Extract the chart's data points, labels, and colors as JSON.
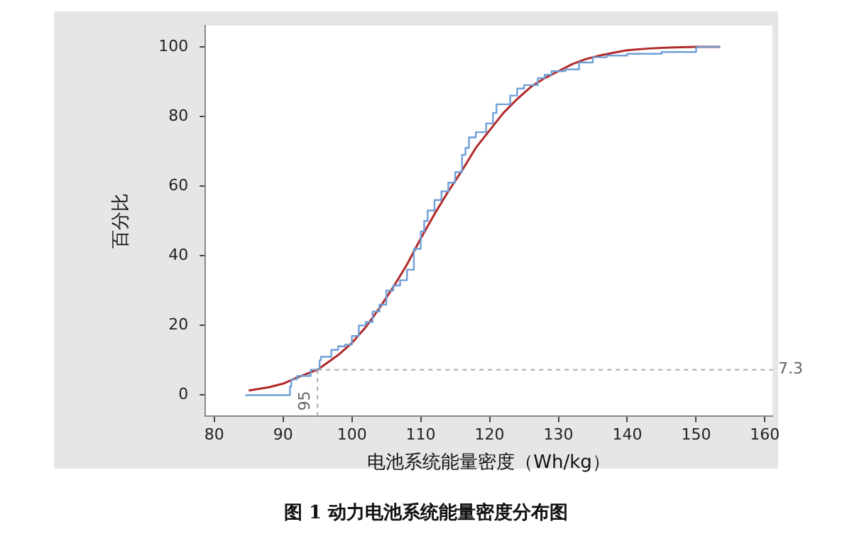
{
  "chart_data": {
    "type": "line",
    "xlabel": "电池系统能量密度（Wh/kg）",
    "ylabel": "百分比",
    "xlim": [
      78.7,
      161.1
    ],
    "ylim": [
      -6.1,
      106.1
    ],
    "xticks": [
      80,
      90,
      100,
      110,
      120,
      130,
      140,
      150,
      160
    ],
    "yticks": [
      0,
      20,
      40,
      60,
      80,
      100
    ],
    "series": [
      {
        "type": "step",
        "color": "#6f9fd8",
        "x": [
          84.5,
          91,
          91.2,
          92,
          94,
          95.3,
          95.5,
          97,
          98,
          99,
          100,
          101,
          102,
          103,
          104,
          105,
          106,
          107,
          108,
          109,
          110,
          110.5,
          111,
          112,
          113,
          114,
          115,
          116,
          116.5,
          117,
          118,
          119.5,
          120.5,
          121,
          123,
          124,
          125,
          127,
          128,
          129,
          131,
          133,
          135,
          137,
          140,
          145,
          150,
          150.3,
          153.5
        ],
        "values": [
          0,
          0,
          2.5,
          4.5,
          5.5,
          7.3,
          10,
          11,
          13,
          14,
          14.5,
          17,
          20,
          21,
          24,
          26,
          30,
          31.5,
          33,
          36,
          42,
          47,
          50,
          53,
          56,
          58.5,
          61,
          64,
          69,
          71,
          74,
          75.5,
          78,
          81,
          83.5,
          86,
          88,
          89,
          91,
          92,
          93,
          93.5,
          95.5,
          97,
          97.5,
          98,
          98.5,
          99.8,
          100
        ]
      },
      {
        "type": "line",
        "color": "#b22a2a",
        "x": [
          85,
          88,
          90,
          92,
          95,
          98,
          100,
          102,
          104,
          106,
          108,
          110,
          112,
          114,
          116,
          118,
          120,
          122,
          124,
          126,
          128,
          130,
          132,
          134,
          136,
          138,
          140,
          143,
          146,
          150,
          153.5
        ],
        "values": [
          1.3,
          2.3,
          3.3,
          5,
          7.3,
          11.5,
          15,
          19.5,
          25,
          31,
          37.5,
          45,
          52,
          58.5,
          64.5,
          71,
          76,
          81,
          85,
          88.5,
          91,
          93,
          95,
          96.5,
          97.5,
          98.3,
          99,
          99.5,
          99.8,
          100,
          100
        ]
      }
    ],
    "ref_lines": [
      {
        "axis": "x",
        "value": 95,
        "label": "95",
        "color": "#aaaaaa",
        "line_style": "dashed"
      },
      {
        "axis": "y",
        "value": 7.3,
        "label": "7.3",
        "color": "#aaaaaa",
        "line_style": "dashed"
      }
    ],
    "annotations": [
      "图 1 动力电池系统能量密度分布图"
    ]
  }
}
